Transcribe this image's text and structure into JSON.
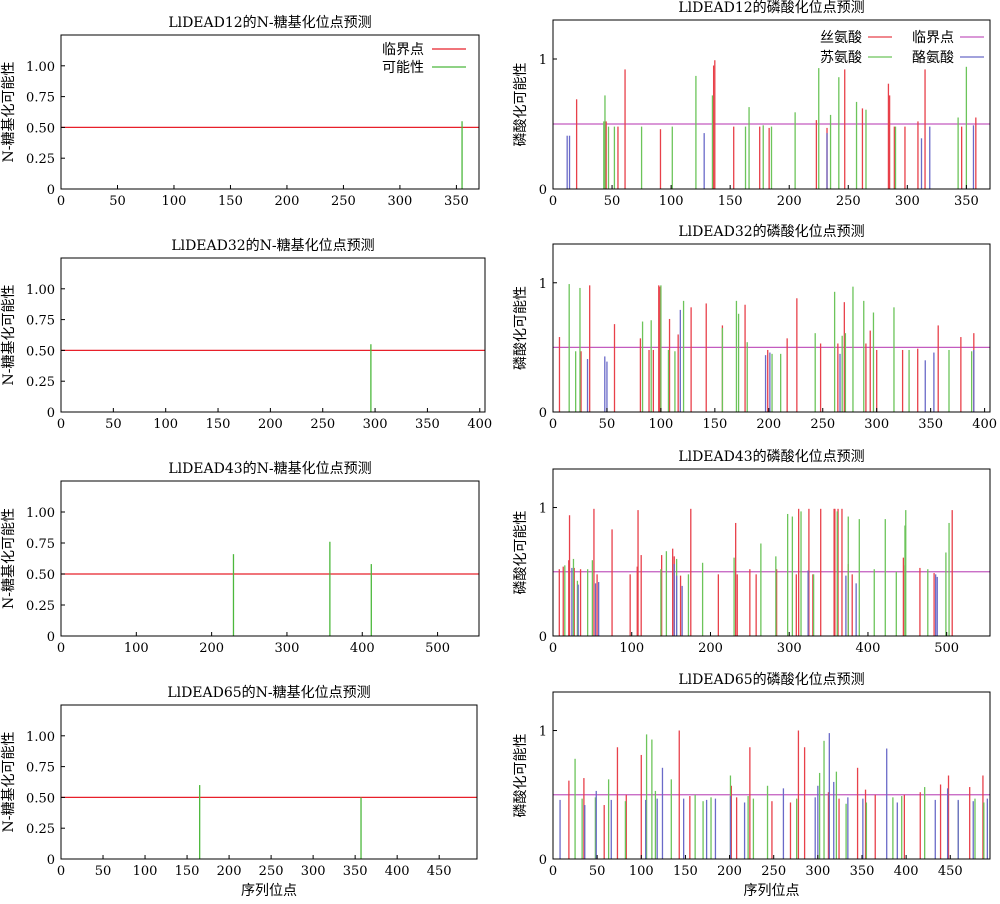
{
  "figure": {
    "xlabel": "序列位点"
  },
  "colors": {
    "threshold": "#e8202a",
    "nglyc": "#4cb83c",
    "ser": "#e8404a",
    "thr": "#6cc45a",
    "tyr": "#6a6ac8",
    "phos_threshold": "#c35bbf",
    "axis": "#000000"
  },
  "legends": {
    "nglyc": {
      "threshold": "临界点",
      "potential": "可能性"
    },
    "phos": {
      "ser": "丝氨酸",
      "thr": "苏氨酸",
      "threshold": "临界点",
      "tyr": "酪氨酸"
    }
  },
  "chart_data": [
    {
      "id": "n1",
      "type": "bar",
      "title": "LlDEAD12的N-糖基化位点预测",
      "ylabel": "N-糖基化可能性",
      "xlabel": "",
      "xlim": [
        0,
        370
      ],
      "ylim": [
        0,
        1.25
      ],
      "xticks": [
        0,
        50,
        100,
        150,
        200,
        250,
        300,
        350
      ],
      "yticks": [
        "0",
        "0.25",
        "0.50",
        "0.75",
        "1.00"
      ],
      "yticks_values": [
        0,
        0.25,
        0.5,
        0.75,
        1.0
      ],
      "threshold": 0.5,
      "legend": true,
      "sites": [
        {
          "x": 355,
          "y": 0.55
        }
      ]
    },
    {
      "id": "n2",
      "type": "bar",
      "title": "LlDEAD32的N-糖基化位点预测",
      "ylabel": "N-糖基化可能性",
      "xlabel": "",
      "xlim": [
        0,
        405
      ],
      "ylim": [
        0,
        1.25
      ],
      "xticks": [
        0,
        50,
        100,
        150,
        200,
        250,
        300,
        350,
        400
      ],
      "yticks": [
        "0",
        "0.25",
        "0.50",
        "0.75",
        "1.00"
      ],
      "yticks_values": [
        0,
        0.25,
        0.5,
        0.75,
        1.0
      ],
      "threshold": 0.5,
      "sites": [
        {
          "x": 296,
          "y": 0.55
        }
      ]
    },
    {
      "id": "n3",
      "type": "bar",
      "title": "LlDEAD43的N-糖基化位点预测",
      "ylabel": "N-糖基化可能性",
      "xlabel": "",
      "xlim": [
        0,
        555
      ],
      "ylim": [
        0,
        1.25
      ],
      "xticks": [
        0,
        100,
        200,
        300,
        400,
        500
      ],
      "yticks": [
        "0",
        "0.25",
        "0.50",
        "0.75",
        "1.00"
      ],
      "yticks_values": [
        0,
        0.25,
        0.5,
        0.75,
        1.0
      ],
      "threshold": 0.5,
      "sites": [
        {
          "x": 229,
          "y": 0.66
        },
        {
          "x": 357,
          "y": 0.76
        },
        {
          "x": 412,
          "y": 0.58
        }
      ]
    },
    {
      "id": "n4",
      "type": "bar",
      "title": "LlDEAD65的N-糖基化位点预测",
      "ylabel": "N-糖基化可能性",
      "xlabel": "序列位点",
      "xlim": [
        0,
        495
      ],
      "ylim": [
        0,
        1.25
      ],
      "xticks": [
        0,
        50,
        100,
        150,
        200,
        250,
        300,
        350,
        400,
        450
      ],
      "yticks": [
        "0",
        "0.25",
        "0.50",
        "0.75",
        "1.00"
      ],
      "yticks_values": [
        0,
        0.25,
        0.5,
        0.75,
        1.0
      ],
      "threshold": 0.5,
      "sites": [
        {
          "x": 165,
          "y": 0.6
        },
        {
          "x": 357,
          "y": 0.5
        }
      ]
    },
    {
      "id": "p1",
      "type": "bar",
      "title": "LlDEAD12的磷酸化位点预测",
      "ylabel": "磷酸化可能性",
      "xlabel": "",
      "xlim": [
        0,
        370
      ],
      "ylim": [
        0,
        1.3
      ],
      "xticks": [
        0,
        50,
        100,
        150,
        200,
        250,
        300,
        350
      ],
      "yticks": [
        "0",
        "1"
      ],
      "yticks_values": [
        0,
        1
      ],
      "threshold": 0.5,
      "legend": true,
      "ser": [
        [
          20,
          0.69
        ],
        [
          45,
          0.52
        ],
        [
          55,
          0.48
        ],
        [
          61,
          0.92
        ],
        [
          91,
          0.46
        ],
        [
          136,
          0.95
        ],
        [
          137,
          0.99
        ],
        [
          153,
          0.48
        ],
        [
          175,
          0.48
        ],
        [
          183,
          0.47
        ],
        [
          223,
          0.53
        ],
        [
          232,
          0.47
        ],
        [
          247,
          0.92
        ],
        [
          262,
          0.62
        ],
        [
          284,
          0.81
        ],
        [
          285,
          0.72
        ],
        [
          289,
          0.48
        ],
        [
          298,
          0.48
        ],
        [
          309,
          0.52
        ],
        [
          315,
          0.92
        ],
        [
          346,
          0.48
        ],
        [
          358,
          0.55
        ]
      ],
      "thr": [
        [
          43,
          0.52
        ],
        [
          44,
          0.72
        ],
        [
          47,
          0.48
        ],
        [
          52,
          0.48
        ],
        [
          75,
          0.48
        ],
        [
          101,
          0.48
        ],
        [
          121,
          0.87
        ],
        [
          135,
          0.72
        ],
        [
          163,
          0.48
        ],
        [
          166,
          0.63
        ],
        [
          178,
          0.49
        ],
        [
          185,
          0.48
        ],
        [
          205,
          0.59
        ],
        [
          225,
          0.93
        ],
        [
          235,
          0.57
        ],
        [
          242,
          0.86
        ],
        [
          257,
          0.67
        ],
        [
          265,
          0.61
        ],
        [
          290,
          0.48
        ],
        [
          343,
          0.55
        ],
        [
          350,
          0.94
        ]
      ],
      "tyr": [
        [
          12,
          0.41
        ],
        [
          14,
          0.41
        ],
        [
          128,
          0.43
        ],
        [
          232,
          0.43
        ],
        [
          312,
          0.39
        ],
        [
          319,
          0.48
        ],
        [
          356,
          0.49
        ]
      ]
    },
    {
      "id": "p2",
      "type": "bar",
      "title": "LlDEAD32的磷酸化位点预测",
      "ylabel": "磷酸化可能性",
      "xlabel": "",
      "xlim": [
        0,
        405
      ],
      "ylim": [
        0,
        1.3
      ],
      "xticks": [
        0,
        50,
        100,
        150,
        200,
        250,
        300,
        350,
        400
      ],
      "yticks": [
        "0",
        "1"
      ],
      "yticks_values": [
        0,
        1
      ],
      "threshold": 0.5,
      "ser": [
        [
          6,
          0.58
        ],
        [
          26,
          0.47
        ],
        [
          34,
          0.98
        ],
        [
          57,
          0.68
        ],
        [
          81,
          0.57
        ],
        [
          89,
          0.48
        ],
        [
          93,
          0.48
        ],
        [
          98,
          0.98
        ],
        [
          99,
          0.97
        ],
        [
          108,
          0.72
        ],
        [
          116,
          0.6
        ],
        [
          128,
          0.81
        ],
        [
          142,
          0.84
        ],
        [
          157,
          0.67
        ],
        [
          178,
          0.83
        ],
        [
          199,
          0.48
        ],
        [
          217,
          0.57
        ],
        [
          226,
          0.88
        ],
        [
          248,
          0.53
        ],
        [
          264,
          0.53
        ],
        [
          270,
          0.85
        ],
        [
          290,
          0.53
        ],
        [
          294,
          0.63
        ],
        [
          300,
          0.48
        ],
        [
          324,
          0.48
        ],
        [
          338,
          0.49
        ],
        [
          357,
          0.67
        ],
        [
          378,
          0.58
        ],
        [
          390,
          0.61
        ]
      ],
      "thr": [
        [
          15,
          0.99
        ],
        [
          21,
          0.47
        ],
        [
          25,
          0.96
        ],
        [
          83,
          0.7
        ],
        [
          91,
          0.71
        ],
        [
          100,
          0.98
        ],
        [
          107,
          0.48
        ],
        [
          113,
          0.47
        ],
        [
          121,
          0.86
        ],
        [
          157,
          0.65
        ],
        [
          170,
          0.86
        ],
        [
          172,
          0.76
        ],
        [
          180,
          0.54
        ],
        [
          203,
          0.45
        ],
        [
          211,
          0.45
        ],
        [
          243,
          0.61
        ],
        [
          261,
          0.93
        ],
        [
          268,
          0.59
        ],
        [
          271,
          0.61
        ],
        [
          278,
          0.97
        ],
        [
          288,
          0.86
        ],
        [
          297,
          0.77
        ],
        [
          316,
          0.81
        ],
        [
          330,
          0.48
        ],
        [
          367,
          0.48
        ],
        [
          388,
          0.47
        ]
      ],
      "tyr": [
        [
          32,
          0.41
        ],
        [
          48,
          0.43
        ],
        [
          50,
          0.39
        ],
        [
          118,
          0.79
        ],
        [
          197,
          0.44
        ],
        [
          201,
          0.46
        ],
        [
          266,
          0.45
        ],
        [
          345,
          0.4
        ],
        [
          353,
          0.46
        ],
        [
          390,
          0.48
        ]
      ]
    },
    {
      "id": "p3",
      "type": "bar",
      "title": "LlDEAD43的磷酸化位点预测",
      "ylabel": "磷酸化可能性",
      "xlabel": "",
      "xlim": [
        0,
        555
      ],
      "ylim": [
        0,
        1.3
      ],
      "xticks": [
        0,
        100,
        200,
        300,
        400,
        500
      ],
      "yticks": [
        "0",
        "1"
      ],
      "yticks_values": [
        0,
        1
      ],
      "threshold": 0.5,
      "ser": [
        [
          8,
          0.52
        ],
        [
          13,
          0.54
        ],
        [
          20,
          0.59
        ],
        [
          21,
          0.94
        ],
        [
          27,
          0.53
        ],
        [
          35,
          0.52
        ],
        [
          52,
          0.99
        ],
        [
          56,
          0.48
        ],
        [
          75,
          0.83
        ],
        [
          98,
          0.48
        ],
        [
          107,
          0.54
        ],
        [
          108,
          0.98
        ],
        [
          112,
          0.63
        ],
        [
          138,
          0.63
        ],
        [
          152,
          0.68
        ],
        [
          154,
          0.62
        ],
        [
          162,
          0.47
        ],
        [
          175,
          0.99
        ],
        [
          210,
          0.48
        ],
        [
          232,
          0.88
        ],
        [
          234,
          0.48
        ],
        [
          250,
          0.52
        ],
        [
          258,
          0.48
        ],
        [
          284,
          0.52
        ],
        [
          309,
          0.48
        ],
        [
          312,
          0.99
        ],
        [
          325,
          0.99
        ],
        [
          330,
          0.48
        ],
        [
          340,
          0.99
        ],
        [
          357,
          0.99
        ],
        [
          358,
          0.99
        ],
        [
          362,
          0.99
        ],
        [
          367,
          0.99
        ],
        [
          375,
          0.56
        ],
        [
          380,
          0.48
        ],
        [
          445,
          0.61
        ],
        [
          447,
          0.55
        ],
        [
          466,
          0.53
        ],
        [
          484,
          0.49
        ],
        [
          507,
          0.98
        ]
      ],
      "thr": [
        [
          15,
          0.55
        ],
        [
          26,
          0.6
        ],
        [
          31,
          0.43
        ],
        [
          44,
          0.52
        ],
        [
          50,
          0.59
        ],
        [
          137,
          0.52
        ],
        [
          144,
          0.66
        ],
        [
          157,
          0.6
        ],
        [
          172,
          0.48
        ],
        [
          190,
          0.57
        ],
        [
          230,
          0.61
        ],
        [
          264,
          0.72
        ],
        [
          283,
          0.62
        ],
        [
          298,
          0.95
        ],
        [
          304,
          0.93
        ],
        [
          315,
          0.97
        ],
        [
          331,
          0.48
        ],
        [
          361,
          0.97
        ],
        [
          375,
          0.93
        ],
        [
          389,
          0.91
        ],
        [
          408,
          0.52
        ],
        [
          422,
          0.91
        ],
        [
          436,
          0.5
        ],
        [
          447,
          0.86
        ],
        [
          448,
          0.98
        ],
        [
          476,
          0.52
        ],
        [
          499,
          0.65
        ],
        [
          503,
          0.88
        ]
      ],
      "tyr": [
        [
          24,
          0.53
        ],
        [
          32,
          0.4
        ],
        [
          54,
          0.41
        ],
        [
          58,
          0.42
        ],
        [
          154,
          0.56
        ],
        [
          157,
          0.47
        ],
        [
          164,
          0.39
        ],
        [
          324,
          0.51
        ],
        [
          372,
          0.47
        ],
        [
          385,
          0.41
        ],
        [
          486,
          0.48
        ],
        [
          488,
          0.46
        ]
      ]
    },
    {
      "id": "p4",
      "type": "bar",
      "title": "LlDEAD65的磷酸化位点预测",
      "ylabel": "磷酸化可能性",
      "xlabel": "序列位点",
      "xlim": [
        0,
        495
      ],
      "ylim": [
        0,
        1.3
      ],
      "xticks": [
        0,
        50,
        100,
        150,
        200,
        250,
        300,
        350,
        400,
        450
      ],
      "yticks": [
        "0",
        "1"
      ],
      "yticks_values": [
        0,
        1
      ],
      "threshold": 0.5,
      "ser": [
        [
          18,
          0.61
        ],
        [
          35,
          0.63
        ],
        [
          58,
          0.42
        ],
        [
          73,
          0.87
        ],
        [
          83,
          0.5
        ],
        [
          100,
          0.81
        ],
        [
          143,
          1.0
        ],
        [
          155,
          0.49
        ],
        [
          202,
          0.57
        ],
        [
          208,
          0.48
        ],
        [
          223,
          0.87
        ],
        [
          248,
          0.45
        ],
        [
          269,
          0.44
        ],
        [
          278,
          1.0
        ],
        [
          285,
          0.87
        ],
        [
          312,
          0.52
        ],
        [
          324,
          0.47
        ],
        [
          345,
          0.71
        ],
        [
          354,
          0.54
        ],
        [
          365,
          0.5
        ],
        [
          398,
          0.5
        ],
        [
          416,
          0.52
        ],
        [
          439,
          0.58
        ],
        [
          448,
          0.65
        ],
        [
          472,
          0.56
        ],
        [
          487,
          0.65
        ]
      ],
      "thr": [
        [
          25,
          0.78
        ],
        [
          33,
          0.47
        ],
        [
          48,
          0.48
        ],
        [
          63,
          0.62
        ],
        [
          82,
          0.45
        ],
        [
          106,
          0.97
        ],
        [
          112,
          0.93
        ],
        [
          116,
          0.53
        ],
        [
          134,
          0.62
        ],
        [
          161,
          0.5
        ],
        [
          170,
          0.45
        ],
        [
          179,
          0.48
        ],
        [
          201,
          0.65
        ],
        [
          221,
          0.49
        ],
        [
          227,
          0.47
        ],
        [
          243,
          0.57
        ],
        [
          276,
          0.47
        ],
        [
          302,
          0.67
        ],
        [
          307,
          0.92
        ],
        [
          321,
          0.68
        ],
        [
          332,
          0.43
        ],
        [
          355,
          0.44
        ],
        [
          385,
          0.48
        ],
        [
          395,
          0.49
        ],
        [
          421,
          0.56
        ],
        [
          459,
          0.45
        ],
        [
          478,
          0.47
        ],
        [
          488,
          0.44
        ]
      ],
      "tyr": [
        [
          8,
          0.46
        ],
        [
          36,
          0.42
        ],
        [
          49,
          0.53
        ],
        [
          66,
          0.46
        ],
        [
          105,
          0.46
        ],
        [
          118,
          0.47
        ],
        [
          124,
          0.71
        ],
        [
          148,
          0.47
        ],
        [
          174,
          0.46
        ],
        [
          184,
          0.47
        ],
        [
          201,
          0.49
        ],
        [
          217,
          0.44
        ],
        [
          261,
          0.55
        ],
        [
          297,
          0.48
        ],
        [
          300,
          0.57
        ],
        [
          313,
          0.98
        ],
        [
          318,
          0.6
        ],
        [
          334,
          0.48
        ],
        [
          351,
          0.47
        ],
        [
          378,
          0.86
        ],
        [
          390,
          0.44
        ],
        [
          433,
          0.46
        ],
        [
          447,
          0.55
        ],
        [
          459,
          0.46
        ],
        [
          476,
          0.45
        ],
        [
          492,
          0.47
        ]
      ]
    }
  ]
}
